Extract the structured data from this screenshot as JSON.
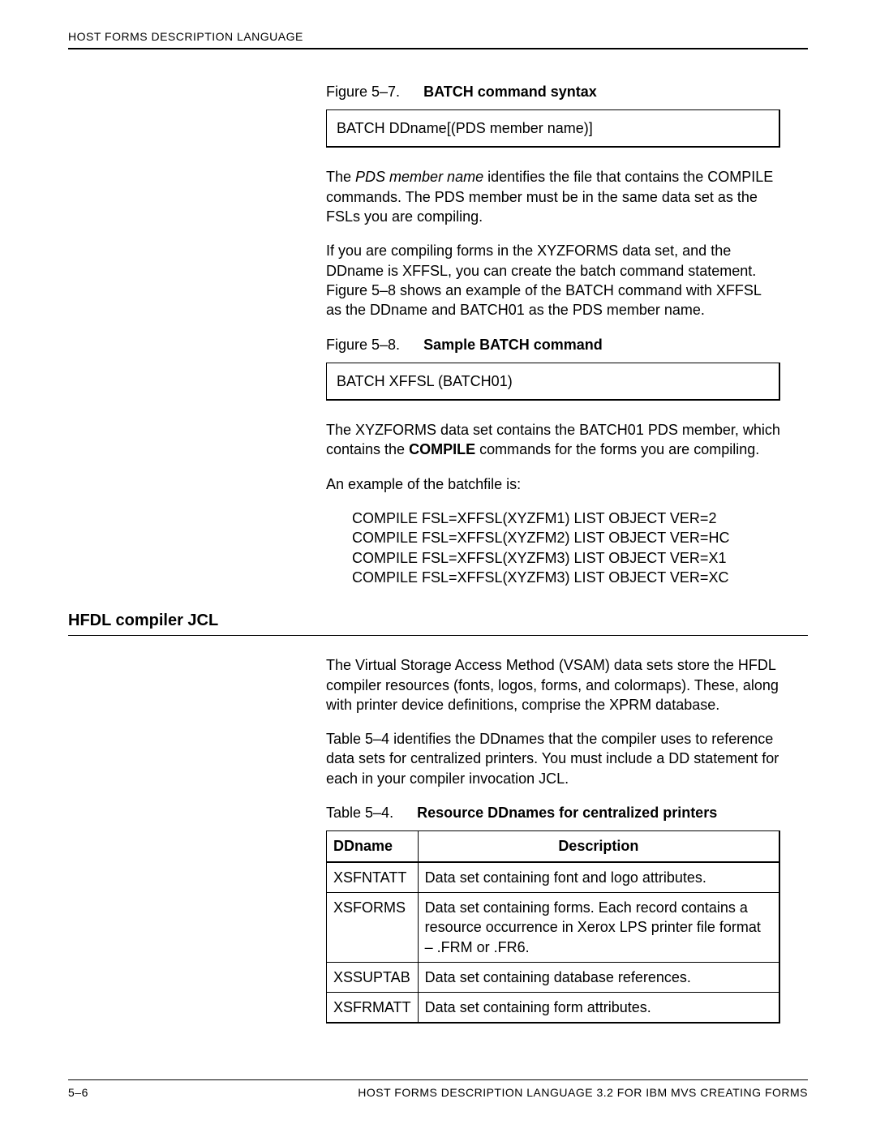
{
  "header": {
    "running_head": "HOST FORMS DESCRIPTION LANGUAGE"
  },
  "figure57": {
    "label": "Figure 5–7.",
    "caption": "BATCH  command syntax",
    "box_text": "BATCH DDname[(PDS member name)]"
  },
  "para1": {
    "pre": "The ",
    "ital": "PDS member name",
    "post": " identifies the file that contains the COMPILE commands.  The PDS member must be in the same data set as the FSLs you are compiling."
  },
  "para2": "If you are compiling forms in the XYZFORMS data set, and the DDname is XFFSL, you can create the batch command statement.  Figure 5–8 shows an example of the BATCH command with XFFSL as the DDname and BATCH01 as the PDS member name.",
  "figure58": {
    "label": "Figure 5–8.",
    "caption": "Sample BATCH  command",
    "box_text": "BATCH XFFSL (BATCH01)"
  },
  "para3": {
    "pre": "The XYZFORMS data set contains the BATCH01 PDS member, which contains the ",
    "bold": "COMPILE",
    "post": " commands for the forms you are compiling."
  },
  "para4": "An example of the batchfile is:",
  "batch_lines": [
    "COMPILE FSL=XFFSL(XYZFM1) LIST OBJECT VER=2",
    "COMPILE FSL=XFFSL(XYZFM2) LIST OBJECT VER=HC",
    "COMPILE FSL=XFFSL(XYZFM3) LIST OBJECT VER=X1",
    "COMPILE FSL=XFFSL(XYZFM3) LIST OBJECT VER=XC"
  ],
  "section_heading": "HFDL compiler JCL",
  "para5": "The Virtual Storage Access Method (VSAM) data sets store the HFDL compiler resources (fonts, logos, forms, and colormaps).  These, along with printer device definitions, comprise the XPRM database.",
  "para6": "Table 5–4 identifies the DDnames that the compiler uses to reference data sets for centralized printers.  You must include a DD statement for each in your compiler invocation JCL.",
  "table54": {
    "label": "Table 5–4.",
    "caption": "Resource DDnames for centralized printers",
    "columns": [
      "DDname",
      "Description"
    ],
    "rows": [
      [
        "XSFNTATT",
        "Data set containing font and logo attributes."
      ],
      [
        "XSFORMS",
        "Data set containing forms.  Each record contains a resource occurrence in Xerox LPS printer file format – .FRM or .FR6."
      ],
      [
        "XSSUPTAB",
        "Data set containing database references."
      ],
      [
        "XSFRMATT",
        "Data set containing form attributes."
      ]
    ]
  },
  "footer": {
    "page_num": "5–6",
    "title": "HOST FORMS DESCRIPTION LANGUAGE 3.2 FOR IBM MVS CREATING FORMS"
  }
}
